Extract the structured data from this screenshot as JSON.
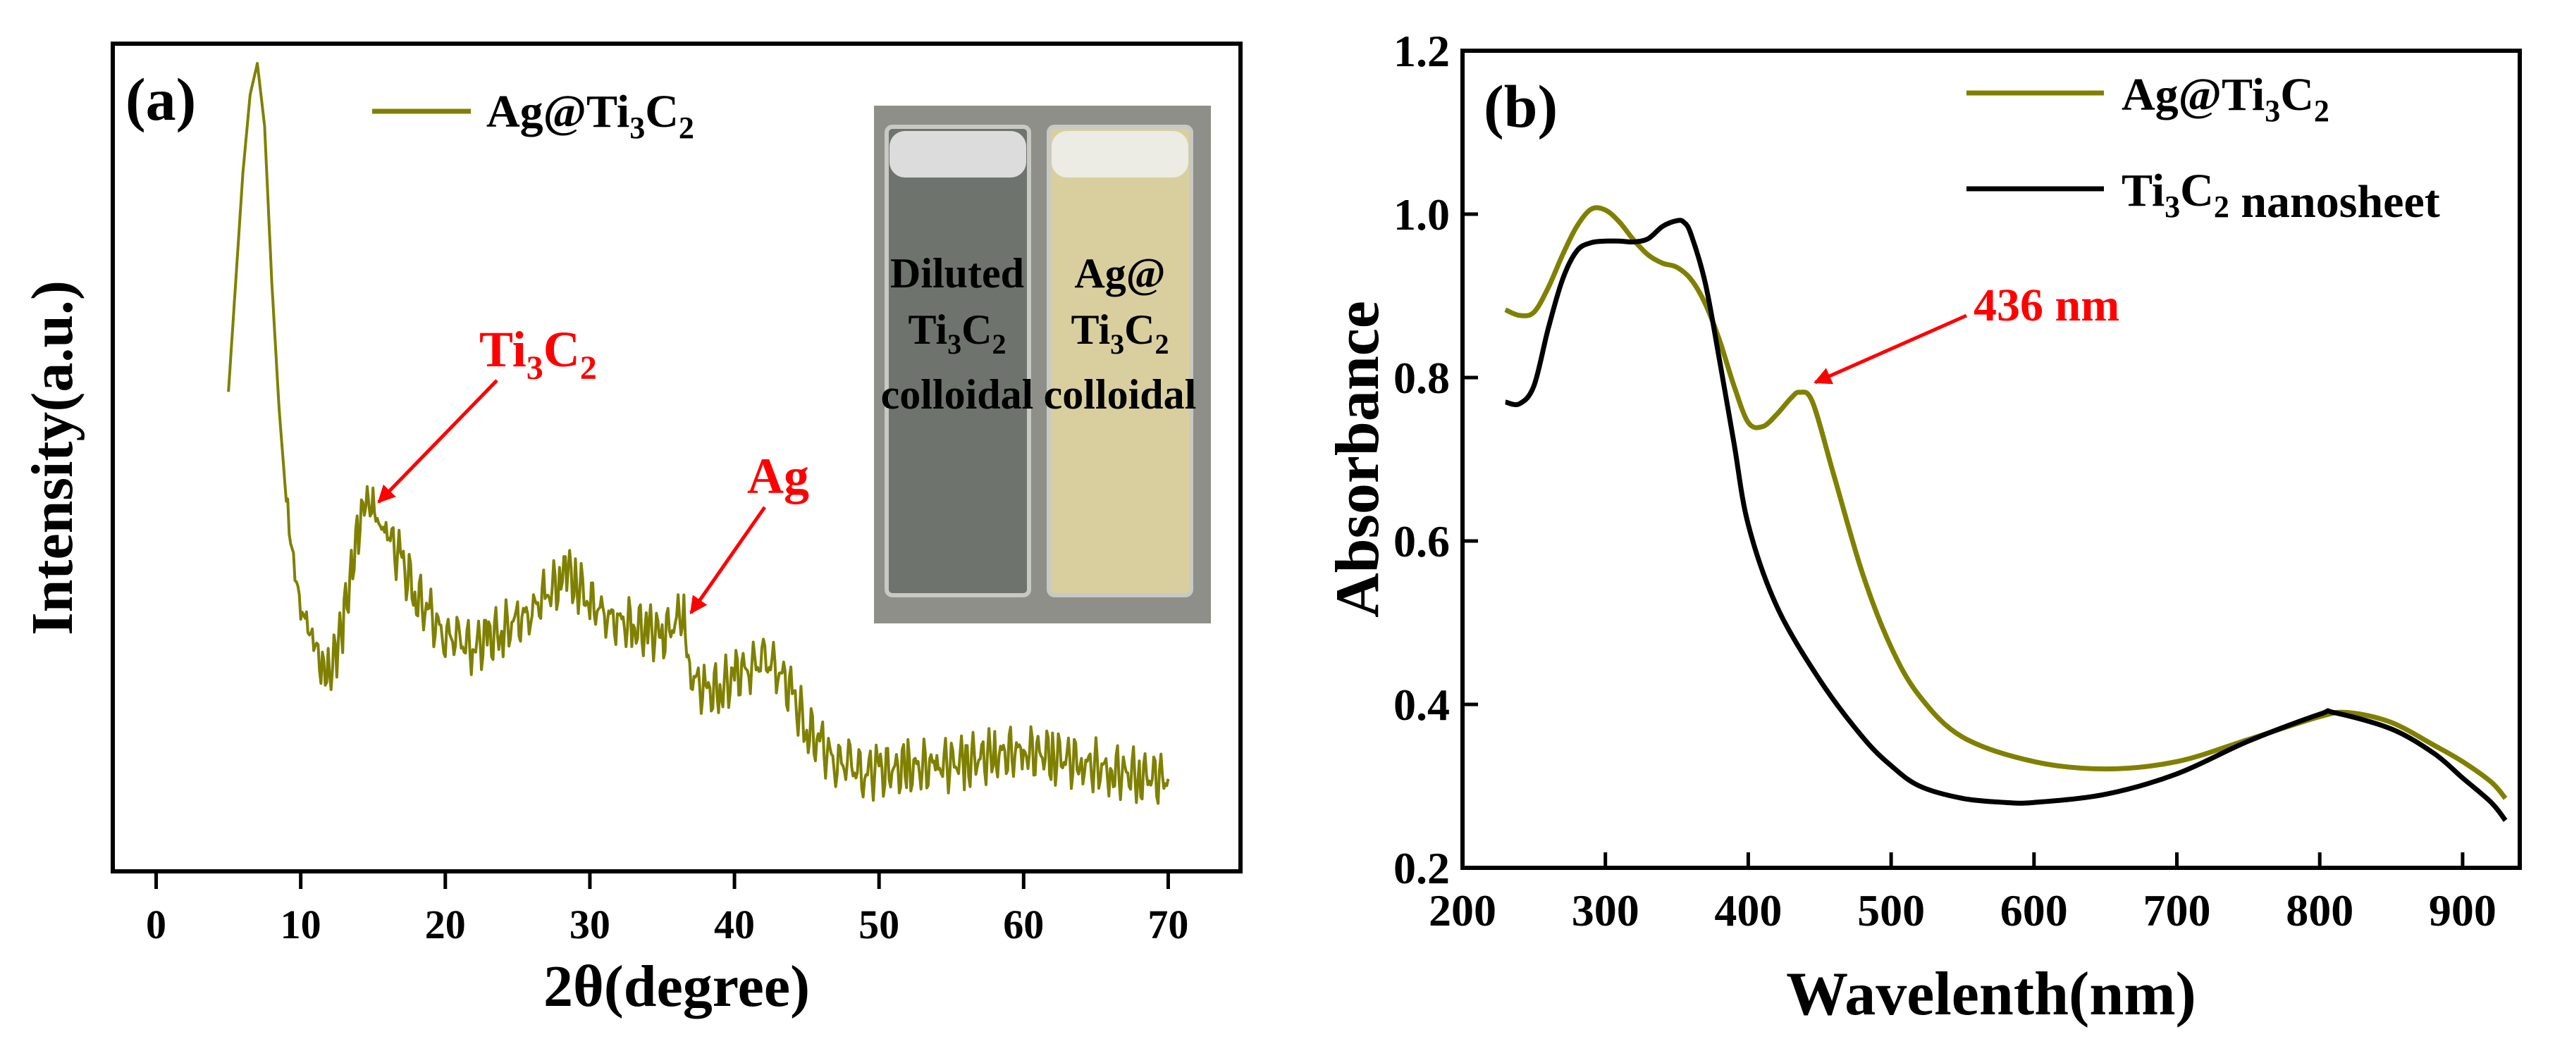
{
  "chart_data": [
    {
      "type": "line",
      "panel_label": "(a)",
      "xlabel": "2θ(degree)",
      "ylabel": "Intensity(a.u.)",
      "xlim": [
        -3,
        75
      ],
      "ylim": [
        0,
        100
      ],
      "xticks": [
        0,
        10,
        20,
        30,
        40,
        50,
        60,
        70
      ],
      "yticks_shown": false,
      "grid": false,
      "legend_position": "top-left",
      "series": [
        {
          "name": "Ag@Ti3C2",
          "color": "#808000",
          "x": [
            5,
            6,
            6.5,
            7,
            7.5,
            8,
            8.5,
            9,
            9.5,
            10,
            10.5,
            11,
            11.5,
            12,
            12.5,
            13,
            13.5,
            14,
            14.5,
            15,
            15.5,
            16,
            17,
            18,
            19,
            20,
            21,
            22,
            23,
            24,
            25,
            26,
            27,
            28,
            28.5,
            29,
            30,
            31,
            32,
            33,
            34,
            35,
            36,
            36.5,
            37,
            38,
            39,
            40,
            41,
            42,
            43,
            44,
            45,
            46,
            47,
            48,
            49,
            50,
            52,
            54,
            56,
            58,
            60,
            62,
            64,
            66,
            68,
            70
          ],
          "values": [
            58,
            86,
            96,
            100,
            92,
            72,
            56,
            44,
            37,
            31,
            27,
            25,
            23.5,
            22.5,
            24,
            29,
            36,
            41,
            43,
            43,
            42,
            40,
            36,
            32,
            29,
            27,
            26,
            25.5,
            26.5,
            27.5,
            28.5,
            30,
            32,
            34,
            35,
            34,
            31,
            29.5,
            28.5,
            28,
            27.5,
            27,
            28.5,
            29,
            22,
            19.5,
            20,
            21.5,
            23,
            23.5,
            23,
            19,
            15,
            12.5,
            11,
            10,
            9.5,
            9.5,
            9.8,
            10.2,
            10.8,
            11.5,
            12,
            11.5,
            10.5,
            9.5,
            9,
            8.5
          ]
        }
      ],
      "annotations": [
        {
          "text": "Ti3C2",
          "color": "#ff0000",
          "points_to": {
            "x": 15,
            "y": 43
          }
        },
        {
          "text": "Ag",
          "color": "#ff0000",
          "points_to": {
            "x": 36.5,
            "y": 29
          }
        }
      ],
      "inset_photo": {
        "labels": [
          "Diluted",
          "Ti3C2",
          "colloidal",
          "Ag@",
          "Ti3C2",
          "colloidal"
        ]
      }
    },
    {
      "type": "line",
      "panel_label": "(b)",
      "xlabel": "Wavelenth(nm)",
      "ylabel": "Absorbance",
      "xlim": [
        200,
        940
      ],
      "ylim": [
        0.2,
        1.2
      ],
      "xticks": [
        200,
        300,
        400,
        500,
        600,
        700,
        800,
        900
      ],
      "yticks": [
        0.2,
        0.4,
        0.6,
        0.8,
        1.0,
        1.2
      ],
      "grid": false,
      "legend_position": "top-right",
      "series": [
        {
          "name": "Ag@Ti3C2",
          "color": "#808000",
          "x": [
            230,
            240,
            250,
            260,
            270,
            280,
            290,
            300,
            310,
            320,
            330,
            340,
            350,
            360,
            370,
            380,
            390,
            400,
            410,
            420,
            430,
            436,
            445,
            460,
            480,
            500,
            520,
            550,
            600,
            650,
            700,
            750,
            800,
            820,
            850,
            880,
            900,
            920,
            930
          ],
          "values": [
            0.883,
            0.876,
            0.88,
            0.91,
            0.95,
            0.985,
            1.006,
            1.005,
            0.99,
            0.968,
            0.95,
            0.94,
            0.935,
            0.92,
            0.89,
            0.845,
            0.79,
            0.745,
            0.74,
            0.755,
            0.775,
            0.782,
            0.77,
            0.68,
            0.56,
            0.47,
            0.41,
            0.36,
            0.33,
            0.321,
            0.33,
            0.357,
            0.385,
            0.39,
            0.378,
            0.35,
            0.33,
            0.305,
            0.285
          ]
        },
        {
          "name": "Ti3C2 nanosheet",
          "color": "#000000",
          "x": [
            230,
            240,
            250,
            260,
            270,
            280,
            290,
            300,
            310,
            320,
            330,
            340,
            350,
            355,
            360,
            370,
            380,
            390,
            400,
            420,
            450,
            480,
            500,
            520,
            550,
            580,
            600,
            650,
            700,
            750,
            800,
            810,
            850,
            880,
            900,
            920,
            930
          ],
          "values": [
            0.77,
            0.768,
            0.79,
            0.86,
            0.92,
            0.955,
            0.965,
            0.967,
            0.967,
            0.966,
            0.97,
            0.985,
            0.992,
            0.99,
            0.975,
            0.915,
            0.82,
            0.72,
            0.62,
            0.52,
            0.43,
            0.36,
            0.325,
            0.3,
            0.285,
            0.28,
            0.28,
            0.29,
            0.315,
            0.355,
            0.388,
            0.39,
            0.37,
            0.34,
            0.31,
            0.28,
            0.258
          ]
        }
      ],
      "annotations": [
        {
          "text": "436 nm",
          "color": "#ff0000",
          "points_to": {
            "x": 436,
            "y": 0.782
          }
        }
      ]
    }
  ]
}
